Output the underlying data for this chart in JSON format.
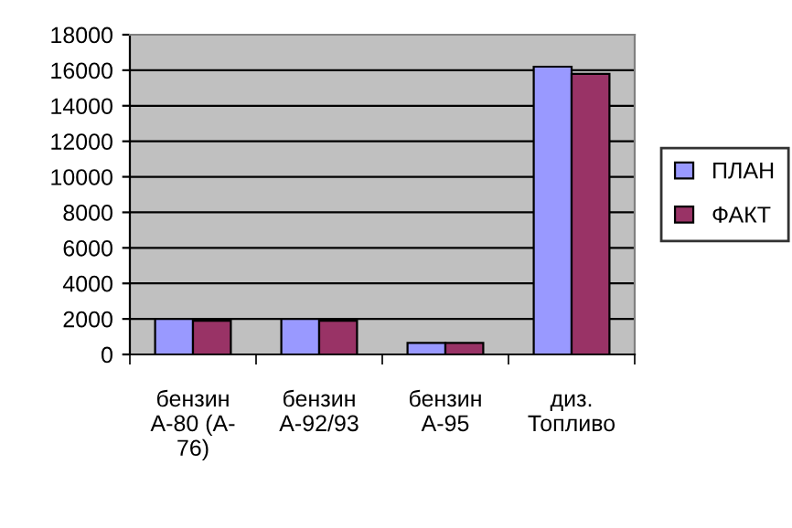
{
  "chart_data": {
    "type": "bar",
    "categories": [
      "бензин\nА-80 (А-\n76)",
      "бензин\nА-92/93",
      "бензин\nА-95",
      "диз.\nТопливо"
    ],
    "series": [
      {
        "name": "ПЛАН",
        "color": "#9999ff",
        "values": [
          2000,
          2000,
          650,
          16200
        ]
      },
      {
        "name": "ФАКТ",
        "color": "#993366",
        "values": [
          1900,
          1900,
          650,
          15800
        ]
      }
    ],
    "ylim": [
      0,
      18000
    ],
    "yticks": [
      0,
      2000,
      4000,
      6000,
      8000,
      10000,
      12000,
      14000,
      16000,
      18000
    ],
    "grid": "y",
    "legend": "right"
  }
}
